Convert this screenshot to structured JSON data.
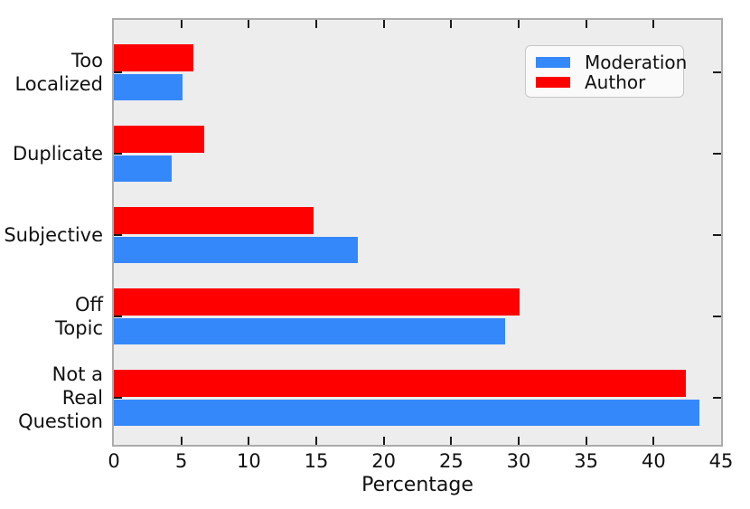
{
  "chart_data": {
    "type": "bar",
    "orientation": "horizontal",
    "title": "",
    "xlabel": "Percentage",
    "ylabel": "",
    "xlim": [
      0,
      45
    ],
    "xticks": [
      0,
      5,
      10,
      15,
      20,
      25,
      30,
      35,
      40,
      45
    ],
    "grid": false,
    "categories": [
      "Too Localized",
      "Duplicate",
      "Subjective",
      "Off Topic",
      "Not a Real Question"
    ],
    "category_label_lines": [
      [
        "Too",
        "Localized"
      ],
      [
        "Duplicate"
      ],
      [
        "Subjective"
      ],
      [
        "Off",
        "Topic"
      ],
      [
        "Not a",
        "Real",
        "Question"
      ]
    ],
    "series": [
      {
        "name": "Moderation",
        "color": "#3588FA",
        "values": [
          5.1,
          4.3,
          18.1,
          29.0,
          43.4
        ]
      },
      {
        "name": "Author",
        "color": "#FF0000",
        "values": [
          5.9,
          6.7,
          14.8,
          30.1,
          42.4
        ]
      }
    ],
    "bar_order_top_to_bottom": [
      "Author",
      "Moderation"
    ],
    "legend": {
      "position": "upper right",
      "entries": [
        "Moderation",
        "Author"
      ]
    },
    "colors": {
      "plot_background": "#EDEDED",
      "figure_background": "#FFFFFF",
      "spine": "#ABABAB",
      "tick": "#1A1A1A",
      "text": "#111111"
    }
  }
}
